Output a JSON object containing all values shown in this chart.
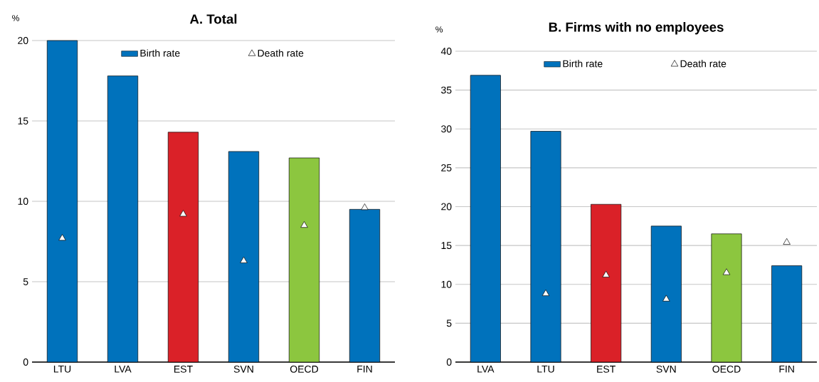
{
  "chart_data": [
    {
      "type": "bar",
      "title": "A. Total",
      "ylabel": "%",
      "categories": [
        "LTU",
        "LVA",
        "EST",
        "SVN",
        "OECD",
        "FIN"
      ],
      "ylim": [
        0,
        20
      ],
      "yticks": [
        0,
        5,
        10,
        15,
        20
      ],
      "grid": "y",
      "legend": "top",
      "series": [
        {
          "name": "Birth rate",
          "color": "#0072bc",
          "colors": [
            "#0072bc",
            "#0072bc",
            "#da2128",
            "#0072bc",
            "#8cc63f",
            "#0072bc"
          ],
          "values": [
            20,
            17.8,
            14.3,
            13.1,
            12.7,
            9.5
          ]
        },
        {
          "name": "Death rate",
          "type": "scatter",
          "marker": "triangle",
          "color": "#ffffff",
          "x": [
            "LTU",
            "LVA",
            "EST",
            "SVN",
            "OECD",
            "FIN"
          ],
          "values": [
            7.7,
            null,
            9.2,
            6.3,
            8.5,
            9.6
          ]
        }
      ]
    },
    {
      "type": "bar",
      "title": "B. Firms with no employees",
      "ylabel": "%",
      "categories": [
        "LVA",
        "LTU",
        "EST",
        "SVN",
        "OECD",
        "FIN"
      ],
      "ylim": [
        0,
        40
      ],
      "yticks": [
        0,
        5,
        10,
        15,
        20,
        25,
        30,
        35,
        40
      ],
      "grid": "y",
      "legend": "top",
      "series": [
        {
          "name": "Birth rate",
          "color": "#0072bc",
          "colors": [
            "#0072bc",
            "#0072bc",
            "#da2128",
            "#0072bc",
            "#8cc63f",
            "#0072bc"
          ],
          "values": [
            36.9,
            29.7,
            20.3,
            17.5,
            16.5,
            12.4
          ]
        },
        {
          "name": "Death rate",
          "type": "scatter",
          "marker": "triangle",
          "color": "#ffffff",
          "x": [
            "LVA",
            "LTU",
            "EST",
            "SVN",
            "OECD",
            "FIN"
          ],
          "values": [
            null,
            8.8,
            11.2,
            8.1,
            11.5,
            15.4
          ]
        }
      ]
    }
  ]
}
